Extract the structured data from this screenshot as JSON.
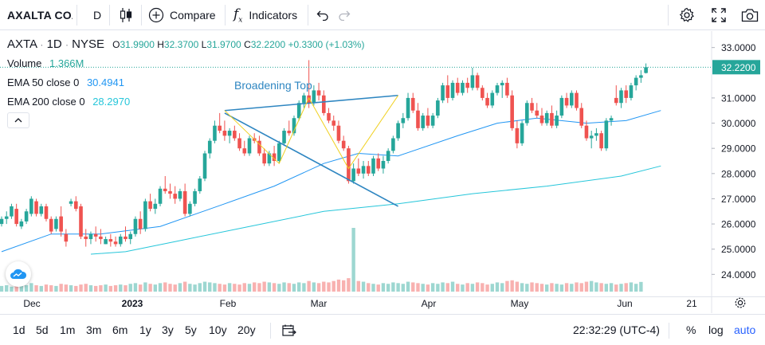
{
  "toolbar": {
    "symbol": "AXALTA COA",
    "interval": "D",
    "compare_label": "Compare",
    "indicators_label": "Indicators"
  },
  "legend": {
    "symbol": "AXTA",
    "interval": "1D",
    "exchange": "NYSE",
    "open_label": "O",
    "open": "31.9900",
    "high_label": "H",
    "high": "32.3700",
    "low_label": "L",
    "low": "31.9700",
    "close_label": "C",
    "close": "32.2200",
    "change": "+0.3300 (+1.03%)",
    "volume_label": "Volume",
    "volume": "1.366M",
    "ema50_label": "EMA 50 close 0",
    "ema50": "30.4941",
    "ema200_label": "EMA 200 close 0",
    "ema200": "28.2970"
  },
  "drawing_label": "Broadening Top",
  "price_axis": {
    "ticks": [
      "33.0000",
      "31.0000",
      "30.0000",
      "29.0000",
      "28.0000",
      "27.0000",
      "26.0000",
      "25.0000",
      "24.0000"
    ],
    "last_price": "32.2200"
  },
  "time_axis": {
    "labels": [
      {
        "text": "Dec",
        "bold": false
      },
      {
        "text": "2023",
        "bold": true
      },
      {
        "text": "Feb",
        "bold": false
      },
      {
        "text": "Mar",
        "bold": false
      },
      {
        "text": "Apr",
        "bold": false
      },
      {
        "text": "May",
        "bold": false
      },
      {
        "text": "Jun",
        "bold": false
      },
      {
        "text": "21",
        "bold": false
      }
    ]
  },
  "bottombar": {
    "ranges": [
      "1d",
      "5d",
      "1m",
      "3m",
      "6m",
      "1y",
      "3y",
      "5y",
      "10y",
      "20y"
    ],
    "clock": "22:32:29 (UTC-4)",
    "percent": "%",
    "log": "log",
    "auto": "auto"
  },
  "colors": {
    "up": "#26a69a",
    "down": "#ef5350",
    "ema50": "#2196f3",
    "ema200": "#26c6da",
    "accent": "#2962ff",
    "pattern_line": "#2e86c1",
    "pattern_zigzag": "#f0d020"
  },
  "chart_data": {
    "type": "candlestick",
    "symbol": "AXTA",
    "interval": "1D",
    "ylim": [
      23.6,
      33.4
    ],
    "indicators": [
      "Volume",
      "EMA 50 close 0",
      "EMA 200 close 0"
    ],
    "candles": [
      [
        26.0,
        26.3,
        25.9,
        26.2
      ],
      [
        26.2,
        26.5,
        26.0,
        26.3
      ],
      [
        26.3,
        26.8,
        26.2,
        26.7
      ],
      [
        26.6,
        26.8,
        25.9,
        26.0
      ],
      [
        25.9,
        26.2,
        25.8,
        26.1
      ],
      [
        26.1,
        26.6,
        26.0,
        26.5
      ],
      [
        26.4,
        27.1,
        26.3,
        27.0
      ],
      [
        26.9,
        27.0,
        26.3,
        26.4
      ],
      [
        26.4,
        26.8,
        26.3,
        26.7
      ],
      [
        26.7,
        26.8,
        26.1,
        26.2
      ],
      [
        26.2,
        26.3,
        25.6,
        25.7
      ],
      [
        25.8,
        26.3,
        25.7,
        26.2
      ],
      [
        26.3,
        26.7,
        25.5,
        25.7
      ],
      [
        25.6,
        25.8,
        25.1,
        25.3
      ],
      [
        26.8,
        27.0,
        26.7,
        26.9
      ],
      [
        26.9,
        27.1,
        26.5,
        26.6
      ],
      [
        26.7,
        26.8,
        25.4,
        25.5
      ],
      [
        25.5,
        25.8,
        25.1,
        25.4
      ],
      [
        25.4,
        25.7,
        25.2,
        25.6
      ],
      [
        25.6,
        25.9,
        25.3,
        25.5
      ],
      [
        25.5,
        25.8,
        25.2,
        25.4
      ],
      [
        25.2,
        25.5,
        25.2,
        25.4
      ],
      [
        25.4,
        25.6,
        25.1,
        25.3
      ],
      [
        25.3,
        25.5,
        25.1,
        25.2
      ],
      [
        25.2,
        25.6,
        25.1,
        25.5
      ],
      [
        25.5,
        25.9,
        25.3,
        25.4
      ],
      [
        25.4,
        25.7,
        25.2,
        25.6
      ],
      [
        25.6,
        26.3,
        25.5,
        26.2
      ],
      [
        26.2,
        26.5,
        25.6,
        25.8
      ],
      [
        25.8,
        27.0,
        25.7,
        26.9
      ],
      [
        26.9,
        27.2,
        26.5,
        26.6
      ],
      [
        26.6,
        27.0,
        26.4,
        26.8
      ],
      [
        26.8,
        27.5,
        26.7,
        27.4
      ],
      [
        27.4,
        27.9,
        27.2,
        27.3
      ],
      [
        27.3,
        27.6,
        27.0,
        27.2
      ],
      [
        27.2,
        27.5,
        26.8,
        27.0
      ],
      [
        27.0,
        27.4,
        26.9,
        27.3
      ],
      [
        27.3,
        27.6,
        26.3,
        26.4
      ],
      [
        26.4,
        26.9,
        26.3,
        26.8
      ],
      [
        26.8,
        27.4,
        26.7,
        27.3
      ],
      [
        27.3,
        27.9,
        27.2,
        27.8
      ],
      [
        27.8,
        28.9,
        27.7,
        28.8
      ],
      [
        28.8,
        29.4,
        28.6,
        29.3
      ],
      [
        29.3,
        30.1,
        29.2,
        29.9
      ],
      [
        29.9,
        30.4,
        29.6,
        29.7
      ],
      [
        29.7,
        30.1,
        29.3,
        29.5
      ],
      [
        29.5,
        29.8,
        29.2,
        29.7
      ],
      [
        29.7,
        29.9,
        29.3,
        29.4
      ],
      [
        29.4,
        29.6,
        28.9,
        29.0
      ],
      [
        29.0,
        29.3,
        28.7,
        28.8
      ],
      [
        28.8,
        29.5,
        28.7,
        29.4
      ],
      [
        29.4,
        29.6,
        29.2,
        29.3
      ],
      [
        29.3,
        29.5,
        28.7,
        28.8
      ],
      [
        28.8,
        29.0,
        28.3,
        28.4
      ],
      [
        28.4,
        28.9,
        28.3,
        28.8
      ],
      [
        28.8,
        29.1,
        28.3,
        28.5
      ],
      [
        28.5,
        29.3,
        28.4,
        29.2
      ],
      [
        29.2,
        29.8,
        29.1,
        29.7
      ],
      [
        29.7,
        30.1,
        29.5,
        29.6
      ],
      [
        29.6,
        30.3,
        29.5,
        30.2
      ],
      [
        30.2,
        30.9,
        30.1,
        30.8
      ],
      [
        30.8,
        31.2,
        30.6,
        31.1
      ],
      [
        31.1,
        32.5,
        30.6,
        30.8
      ],
      [
        30.8,
        31.5,
        30.7,
        31.3
      ],
      [
        31.3,
        31.6,
        30.9,
        31.1
      ],
      [
        31.1,
        31.3,
        30.3,
        30.4
      ],
      [
        30.4,
        30.6,
        30.0,
        30.1
      ],
      [
        30.1,
        30.3,
        29.7,
        29.9
      ],
      [
        29.9,
        30.1,
        29.2,
        29.3
      ],
      [
        29.3,
        29.5,
        28.9,
        29.0
      ],
      [
        29.0,
        29.1,
        27.6,
        27.7
      ],
      [
        27.7,
        28.4,
        27.6,
        28.2
      ],
      [
        28.2,
        28.6,
        27.9,
        28.0
      ],
      [
        28.0,
        28.5,
        27.8,
        28.3
      ],
      [
        28.3,
        28.5,
        27.9,
        28.0
      ],
      [
        28.0,
        28.7,
        27.9,
        28.6
      ],
      [
        28.6,
        28.8,
        28.1,
        28.2
      ],
      [
        28.2,
        28.7,
        28.0,
        28.5
      ],
      [
        28.5,
        29.0,
        28.4,
        28.9
      ],
      [
        28.9,
        29.5,
        28.8,
        29.4
      ],
      [
        29.4,
        30.1,
        29.3,
        30.0
      ],
      [
        30.0,
        30.4,
        29.8,
        30.2
      ],
      [
        30.2,
        31.2,
        30.1,
        31.0
      ],
      [
        31.0,
        31.2,
        30.4,
        30.5
      ],
      [
        30.5,
        30.8,
        29.7,
        29.8
      ],
      [
        29.8,
        30.4,
        29.7,
        30.3
      ],
      [
        30.3,
        30.6,
        29.8,
        29.9
      ],
      [
        29.9,
        30.4,
        29.8,
        30.3
      ],
      [
        30.3,
        31.0,
        30.2,
        30.9
      ],
      [
        30.9,
        31.6,
        30.8,
        31.5
      ],
      [
        31.5,
        31.9,
        30.8,
        31.0
      ],
      [
        31.0,
        31.7,
        30.9,
        31.6
      ],
      [
        31.6,
        31.8,
        31.1,
        31.2
      ],
      [
        31.2,
        31.7,
        31.1,
        31.6
      ],
      [
        31.6,
        31.8,
        31.2,
        31.4
      ],
      [
        31.4,
        32.2,
        31.3,
        31.9
      ],
      [
        31.9,
        32.0,
        31.3,
        31.4
      ],
      [
        31.4,
        31.5,
        30.9,
        31.0
      ],
      [
        31.0,
        31.2,
        30.6,
        30.7
      ],
      [
        30.7,
        31.3,
        30.6,
        31.2
      ],
      [
        31.2,
        31.6,
        31.1,
        31.5
      ],
      [
        31.5,
        31.7,
        31.0,
        31.6
      ],
      [
        31.6,
        31.8,
        31.0,
        31.1
      ],
      [
        31.1,
        31.3,
        29.7,
        29.8
      ],
      [
        29.8,
        30.1,
        29.0,
        29.2
      ],
      [
        29.2,
        30.1,
        29.1,
        30.0
      ],
      [
        30.0,
        30.9,
        29.9,
        30.8
      ],
      [
        30.8,
        31.0,
        30.4,
        30.5
      ],
      [
        30.5,
        30.8,
        30.2,
        30.3
      ],
      [
        30.3,
        30.6,
        29.9,
        30.0
      ],
      [
        30.0,
        30.5,
        29.9,
        30.4
      ],
      [
        30.4,
        30.7,
        29.8,
        29.9
      ],
      [
        29.9,
        30.5,
        29.8,
        30.3
      ],
      [
        30.3,
        31.1,
        30.2,
        31.0
      ],
      [
        31.0,
        31.2,
        30.6,
        30.7
      ],
      [
        30.7,
        31.3,
        30.6,
        31.2
      ],
      [
        31.2,
        31.3,
        30.5,
        30.6
      ],
      [
        30.6,
        30.8,
        29.8,
        29.9
      ],
      [
        29.9,
        30.1,
        29.3,
        29.4
      ],
      [
        29.4,
        29.7,
        29.0,
        29.5
      ],
      [
        29.5,
        29.8,
        29.3,
        29.6
      ],
      [
        29.6,
        29.7,
        28.9,
        29.0
      ],
      [
        29.0,
        30.2,
        28.9,
        30.1
      ],
      [
        30.1,
        30.3,
        29.9,
        30.2
      ],
      [
        31.0,
        31.5,
        30.7,
        30.8
      ],
      [
        30.8,
        31.4,
        30.6,
        31.3
      ],
      [
        31.3,
        31.5,
        30.8,
        31.0
      ],
      [
        31.0,
        31.6,
        30.9,
        31.5
      ],
      [
        31.5,
        31.9,
        31.3,
        31.8
      ],
      [
        31.8,
        32.1,
        31.6,
        31.9
      ],
      [
        31.99,
        32.37,
        31.97,
        32.22
      ]
    ],
    "volume_series": [
      0.8,
      0.9,
      0.7,
      1.0,
      0.8,
      0.9,
      1.2,
      0.9,
      0.8,
      1.0,
      0.9,
      0.8,
      1.1,
      1.0,
      0.9,
      0.8,
      1.0,
      1.1,
      0.9,
      0.8,
      0.9,
      1.0,
      0.8,
      0.9,
      1.0,
      0.9,
      1.1,
      1.2,
      1.0,
      1.3,
      1.1,
      1.0,
      1.2,
      1.3,
      1.1,
      1.0,
      1.2,
      1.4,
      1.1,
      1.0,
      1.2,
      1.4,
      1.3,
      1.2,
      1.1,
      1.0,
      1.2,
      1.1,
      1.0,
      1.2,
      1.1,
      1.3,
      1.2,
      1.4,
      1.3,
      1.2,
      1.1,
      1.3,
      1.2,
      1.1,
      1.3,
      1.2,
      1.5,
      1.3,
      1.2,
      1.4,
      1.3,
      1.5,
      1.7,
      1.6,
      1.9,
      9.0,
      1.5,
      1.4,
      1.2,
      1.1,
      1.0,
      1.2,
      1.1,
      1.3,
      1.2,
      1.1,
      1.4,
      1.3,
      1.2,
      1.1,
      1.0,
      1.2,
      1.1,
      1.3,
      1.2,
      1.4,
      1.1,
      1.0,
      1.2,
      1.1,
      1.3,
      1.2,
      1.0,
      1.1,
      1.3,
      1.2,
      1.5,
      1.6,
      1.4,
      1.2,
      1.1,
      1.3,
      1.2,
      1.1,
      1.0,
      1.2,
      1.1,
      1.0,
      1.2,
      1.1,
      1.3,
      1.2,
      1.4,
      1.5,
      1.3,
      1.2,
      1.1,
      1.2,
      1.0,
      1.1,
      1.2,
      1.3,
      1.1,
      1.366
    ],
    "ema50": [
      [
        0,
        24.9
      ],
      [
        10,
        25.6
      ],
      [
        20,
        25.6
      ],
      [
        32,
        25.9
      ],
      [
        45,
        26.8
      ],
      [
        55,
        27.5
      ],
      [
        65,
        28.4
      ],
      [
        72,
        28.8
      ],
      [
        80,
        28.7
      ],
      [
        92,
        29.5
      ],
      [
        100,
        30.0
      ],
      [
        108,
        30.2
      ],
      [
        118,
        30.0
      ],
      [
        126,
        30.1
      ],
      [
        133,
        30.5
      ]
    ],
    "ema200": [
      [
        18,
        24.8
      ],
      [
        25,
        24.9
      ],
      [
        35,
        25.3
      ],
      [
        50,
        25.9
      ],
      [
        65,
        26.5
      ],
      [
        80,
        26.8
      ],
      [
        95,
        27.2
      ],
      [
        110,
        27.5
      ],
      [
        125,
        27.9
      ],
      [
        133,
        28.3
      ]
    ],
    "broadening_top": {
      "label": "Broadening Top",
      "upper_line": [
        [
          45,
          30.5
        ],
        [
          80,
          31.1
        ]
      ],
      "lower_line": [
        [
          45,
          30.4
        ],
        [
          80,
          26.7
        ]
      ],
      "zigzag": [
        [
          45,
          30.5
        ],
        [
          56,
          28.4
        ],
        [
          62,
          31.0
        ],
        [
          70,
          28.2
        ],
        [
          80,
          31.1
        ]
      ]
    }
  }
}
